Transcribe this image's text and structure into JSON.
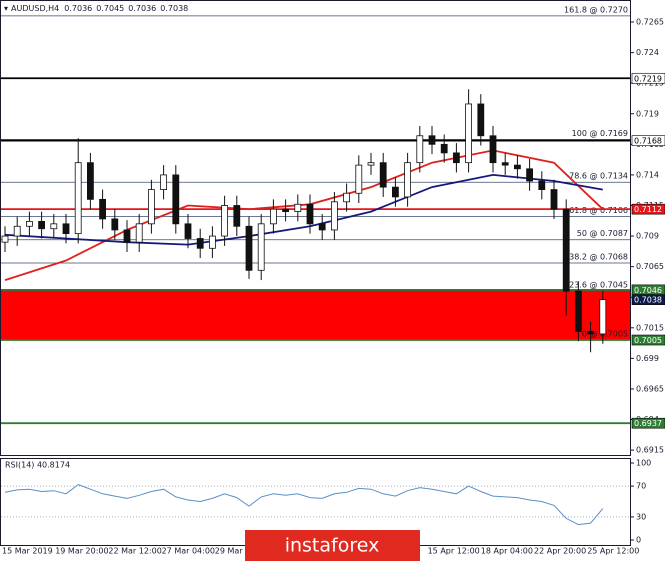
{
  "chart_data": {
    "type": "candlestick",
    "symbol": "AUDUSD,H4",
    "ohlc": [
      0.7036,
      0.7045,
      0.7036,
      0.7038
    ],
    "ylim": [
      0.6911,
      0.7283
    ],
    "yticks": [
      0.6915,
      0.694,
      0.6965,
      0.699,
      0.7015,
      0.704,
      0.7065,
      0.709,
      0.7115,
      0.714,
      0.7165,
      0.719,
      0.7215,
      0.724,
      0.7265
    ],
    "open": [
      0.7085,
      0.709,
      0.7098,
      0.7102,
      0.7096,
      0.71,
      0.7092,
      0.715,
      0.712,
      0.7104,
      0.7095,
      0.7085,
      0.71,
      0.7128,
      0.714,
      0.71,
      0.7088,
      0.708,
      0.709,
      0.7115,
      0.7098,
      0.7062,
      0.71,
      0.7112,
      0.711,
      0.7116,
      0.71,
      0.7095,
      0.7118,
      0.7125,
      0.7148,
      0.715,
      0.713,
      0.7122,
      0.715,
      0.7172,
      0.7165,
      0.7158,
      0.715,
      0.7198,
      0.7172,
      0.715,
      0.7148,
      0.7145,
      0.7135,
      0.7128,
      0.7112,
      0.7045,
      0.7012,
      0.701
    ],
    "high": [
      0.7098,
      0.7106,
      0.711,
      0.711,
      0.7108,
      0.7108,
      0.717,
      0.7158,
      0.7128,
      0.7112,
      0.7103,
      0.7108,
      0.7136,
      0.7148,
      0.7148,
      0.7108,
      0.7096,
      0.7098,
      0.7123,
      0.7123,
      0.7106,
      0.7108,
      0.712,
      0.712,
      0.7124,
      0.7124,
      0.7108,
      0.7126,
      0.7133,
      0.7156,
      0.7158,
      0.7158,
      0.7138,
      0.7158,
      0.718,
      0.718,
      0.7173,
      0.7166,
      0.721,
      0.7206,
      0.718,
      0.7158,
      0.7156,
      0.7153,
      0.7143,
      0.7136,
      0.712,
      0.7053,
      0.702,
      0.7045
    ],
    "low": [
      0.7077,
      0.7082,
      0.709,
      0.7088,
      0.7088,
      0.7084,
      0.7084,
      0.7112,
      0.7096,
      0.7087,
      0.7077,
      0.7077,
      0.7092,
      0.712,
      0.7092,
      0.708,
      0.7072,
      0.7072,
      0.7082,
      0.709,
      0.7055,
      0.7054,
      0.7092,
      0.7102,
      0.7102,
      0.7092,
      0.7087,
      0.7087,
      0.711,
      0.7117,
      0.714,
      0.7122,
      0.7114,
      0.7114,
      0.7142,
      0.7157,
      0.715,
      0.7142,
      0.7142,
      0.7164,
      0.7142,
      0.714,
      0.7137,
      0.7127,
      0.712,
      0.7104,
      0.7025,
      0.7004,
      0.6995,
      0.7002
    ],
    "close": [
      0.709,
      0.7098,
      0.7102,
      0.7096,
      0.71,
      0.7092,
      0.715,
      0.712,
      0.7104,
      0.7095,
      0.7085,
      0.71,
      0.7128,
      0.714,
      0.71,
      0.7088,
      0.708,
      0.709,
      0.7115,
      0.7098,
      0.7062,
      0.71,
      0.7112,
      0.711,
      0.7116,
      0.71,
      0.7095,
      0.7118,
      0.7125,
      0.7148,
      0.715,
      0.713,
      0.7122,
      0.715,
      0.7172,
      0.7165,
      0.7158,
      0.715,
      0.7198,
      0.7172,
      0.715,
      0.7148,
      0.7145,
      0.7135,
      0.7128,
      0.7112,
      0.7045,
      0.7012,
      0.701,
      0.7038
    ],
    "moving_averages": [
      {
        "color": "#e0201c",
        "x": [
          0,
          5,
          10,
          15,
          20,
          25,
          30,
          35,
          40,
          45,
          49
        ],
        "values": [
          0.7054,
          0.707,
          0.7095,
          0.7115,
          0.7112,
          0.7116,
          0.713,
          0.715,
          0.716,
          0.715,
          0.7112
        ]
      },
      {
        "color": "#151a7a",
        "x": [
          0,
          5,
          10,
          15,
          20,
          25,
          30,
          35,
          40,
          45,
          49
        ],
        "values": [
          0.7091,
          0.7088,
          0.7085,
          0.7083,
          0.709,
          0.7098,
          0.711,
          0.713,
          0.714,
          0.7135,
          0.7128
        ]
      }
    ],
    "fibonacci": [
      {
        "label": "161.8 @ 0.7270",
        "value": 0.727
      },
      {
        "label": "100 @ 0.7169",
        "value": 0.7169
      },
      {
        "label": "78.6 @ 0.7134",
        "value": 0.7134
      },
      {
        "label": "61.8 @ 0.7106",
        "value": 0.7106
      },
      {
        "label": "50 @ 0.7087",
        "value": 0.7087
      },
      {
        "label": "38.2 @ 0.7068",
        "value": 0.7068
      },
      {
        "label": "23.6 @ 0.7045",
        "value": 0.7045
      },
      {
        "label": "0 @ 0.7005",
        "value": 0.7005
      }
    ],
    "levels": [
      {
        "value": 0.7219,
        "color": "#000000"
      },
      {
        "value": 0.7168,
        "color": "#000000"
      },
      {
        "value": 0.7112,
        "color": "#e8141a"
      },
      {
        "value": 0.7046,
        "color": "#2e7d32"
      },
      {
        "value": 0.7005,
        "color": "#2e7d32"
      },
      {
        "value": 0.6937,
        "color": "#2e7d32"
      }
    ],
    "zone": {
      "from": 0.7005,
      "to": 0.7046,
      "color": "#ff0000"
    },
    "current_price_color": "#0d1b4a",
    "rsi": {
      "label": "RSI(14) 40.8174",
      "ylim": [
        0,
        100
      ],
      "yticks": [
        0,
        30,
        70,
        100
      ],
      "levels": [
        30,
        70
      ],
      "color": "#5b8fc7",
      "values": [
        62,
        65,
        66,
        63,
        64,
        60,
        72,
        66,
        60,
        57,
        54,
        58,
        63,
        66,
        56,
        52,
        50,
        54,
        60,
        55,
        44,
        56,
        60,
        58,
        60,
        55,
        54,
        60,
        62,
        67,
        66,
        60,
        57,
        64,
        68,
        66,
        63,
        60,
        70,
        63,
        57,
        56,
        55,
        52,
        50,
        45,
        28,
        20,
        22,
        40.8174
      ]
    },
    "time_labels": [
      "15 Mar 2019",
      "19 Mar 20:00",
      "22 Mar 12:00",
      "27 Mar 04:00",
      "29 Mar 2",
      null,
      null,
      null,
      "15 Apr 12:00",
      "18 Apr 04:00",
      "22 Apr 20:00",
      "25 Apr 12:00"
    ],
    "watermark": "instaforex"
  }
}
